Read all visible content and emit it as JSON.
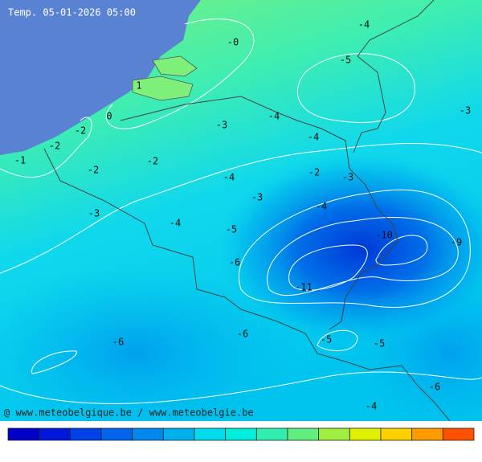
{
  "map": {
    "title": "Temp. 05-01-2026 05:00",
    "credit": "@ www.meteobelgique.be / www.meteobelgie.be",
    "contour_labels": [
      "-0",
      "-4",
      "-5",
      "1",
      "0",
      "-3",
      "-4",
      "-3",
      "-2",
      "-4",
      "-2",
      "-1",
      "-2",
      "-2",
      "-4",
      "-2",
      "-3",
      "-3",
      "-4",
      "-3",
      "-4",
      "-5",
      "-10",
      "-9",
      "-6",
      "-11",
      "-6",
      "-5",
      "-5",
      "-6",
      "-6",
      "-4"
    ]
  }
}
